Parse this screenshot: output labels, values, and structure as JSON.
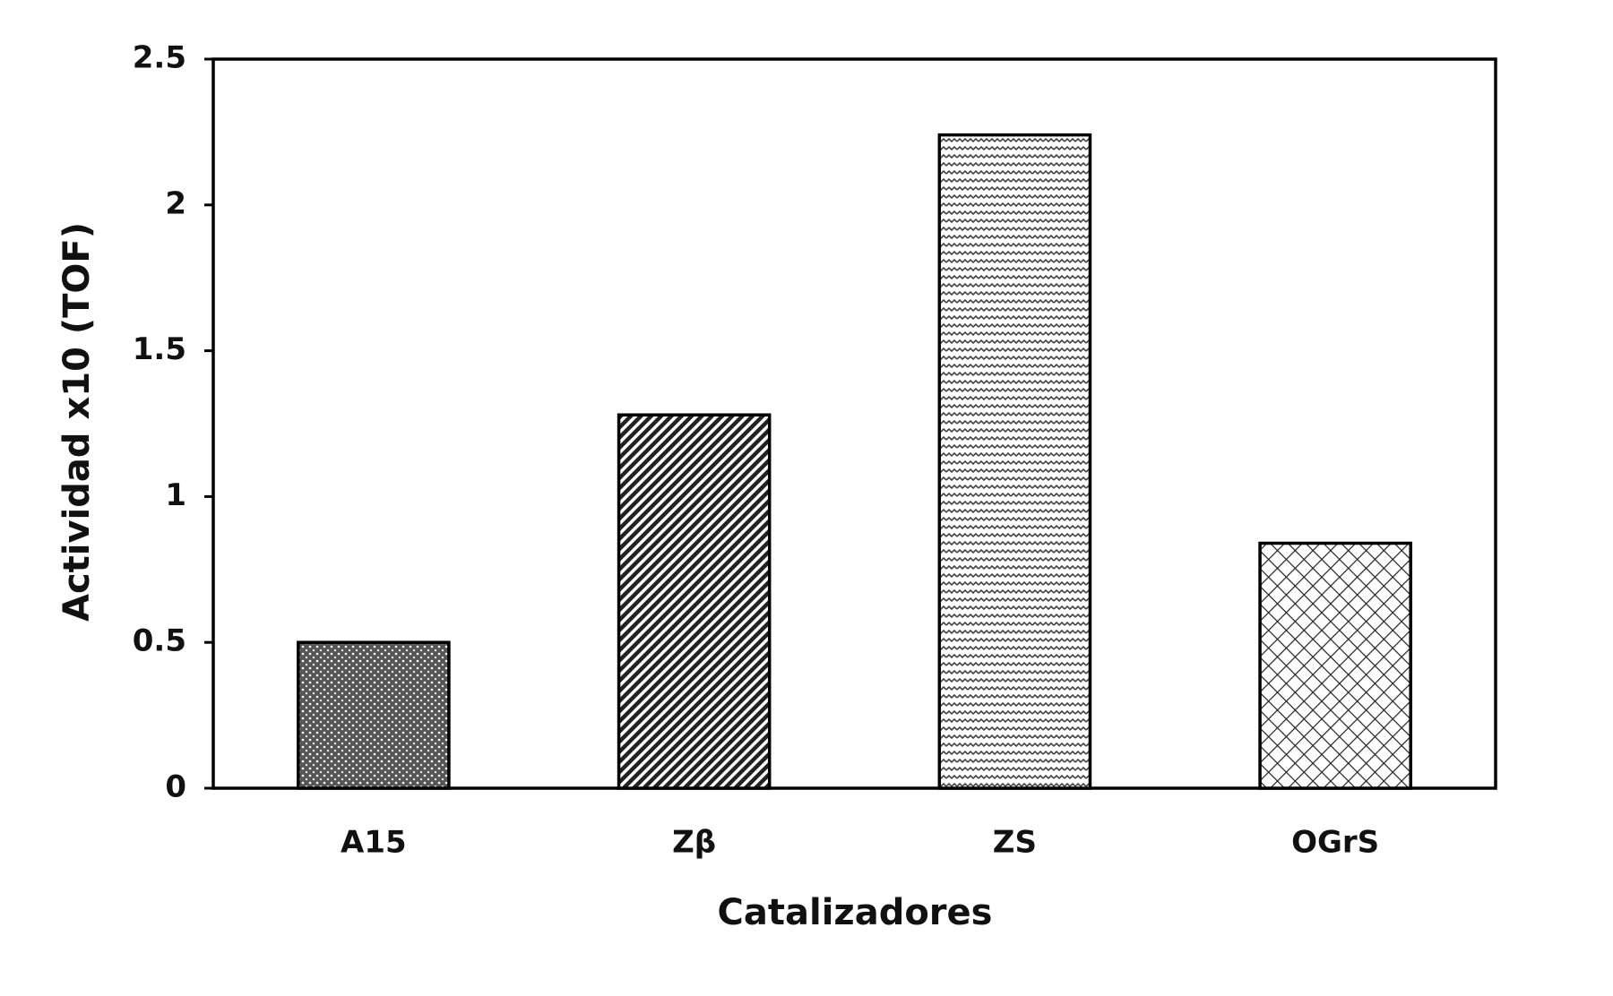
{
  "chart_data": {
    "type": "bar",
    "x_label": "Catalizadores",
    "y_label": "Actividad x10 (TOF)",
    "categories": [
      "A15",
      "Zβ",
      "ZS",
      "OGrS"
    ],
    "values": [
      0.5,
      1.28,
      2.24,
      0.84
    ],
    "color": "#000000",
    "ylim": [
      0,
      2.5
    ],
    "yticks": [
      0,
      0.5,
      1,
      1.5,
      2,
      2.5
    ],
    "grid": false
  }
}
